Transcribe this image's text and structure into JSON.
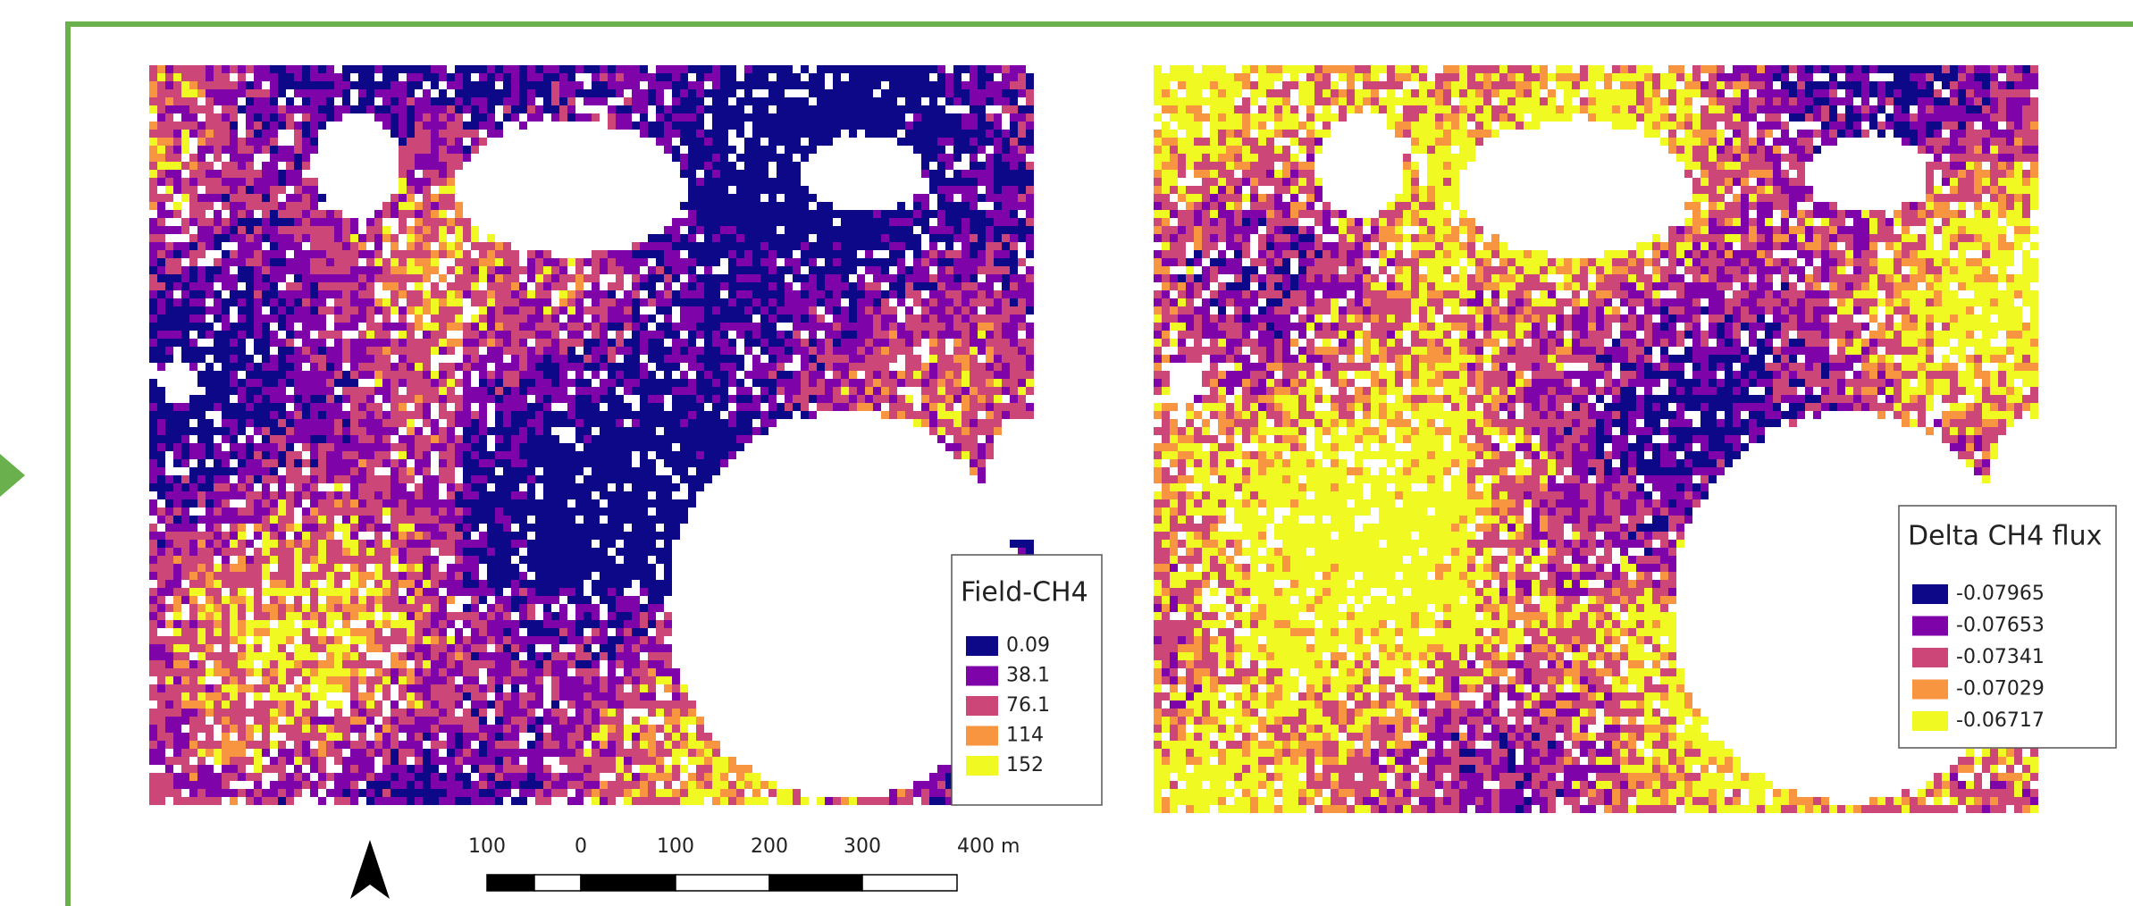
{
  "legends": [
    {
      "title": "Field-CH4",
      "items": [
        {
          "label": "0.09",
          "color": "#0d0887"
        },
        {
          "label": "38.1",
          "color": "#7e03a8"
        },
        {
          "label": "76.1",
          "color": "#cc4778"
        },
        {
          "label": "114",
          "color": "#f89540"
        },
        {
          "label": "152",
          "color": "#f0f921"
        }
      ]
    },
    {
      "title": "Delta CH4 flux",
      "items": [
        {
          "label": "-0.07965",
          "color": "#0d0887"
        },
        {
          "label": "-0.07653",
          "color": "#7e03a8"
        },
        {
          "label": "-0.07341",
          "color": "#cc4778"
        },
        {
          "label": "-0.07029",
          "color": "#f89540"
        },
        {
          "label": "-0.06717",
          "color": "#f0f921"
        }
      ]
    }
  ],
  "scale_bar": {
    "labels": [
      "100",
      "0",
      "100",
      "200",
      "300",
      "400 m"
    ]
  }
}
